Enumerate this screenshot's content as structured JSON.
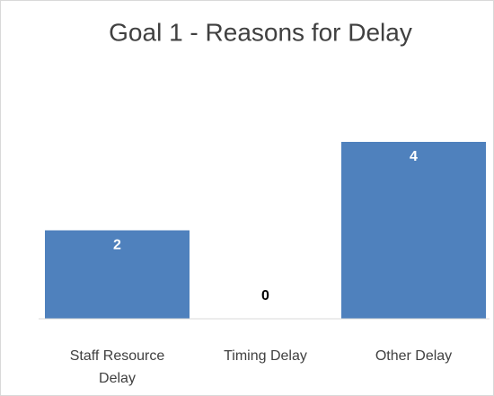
{
  "chart_data": {
    "type": "bar",
    "title": "Goal 1 - Reasons for Delay",
    "categories": [
      "Staff Resource Delay",
      "Timing Delay",
      "Other Delay"
    ],
    "values": [
      2,
      0,
      4
    ],
    "color": "#4f81bd"
  }
}
